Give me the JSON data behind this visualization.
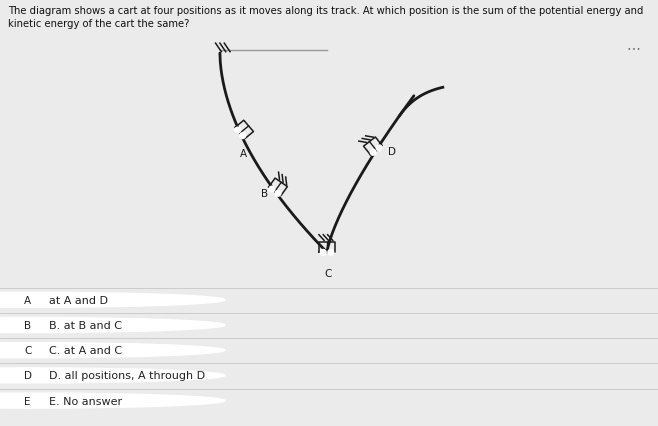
{
  "title_line1": "The diagram shows a cart at four positions as it moves along its track. At which position is the sum of the potential energy and",
  "title_line2": "kinetic energy of the cart the same?",
  "bg_color": "#ebebeb",
  "diagram_bg": "#e8e8e8",
  "white_panel_bg": "#f0f0f0",
  "options": [
    {
      "letter": "A",
      "text": "at A and D"
    },
    {
      "letter": "B",
      "text": "B. at B and C"
    },
    {
      "letter": "C",
      "text": "C. at A and C"
    },
    {
      "letter": "D",
      "text": "D. all positions, A through D"
    },
    {
      "letter": "E",
      "text": "E. No answer"
    }
  ],
  "track_color": "#1a1a1a",
  "label_color": "#1a1a1a"
}
